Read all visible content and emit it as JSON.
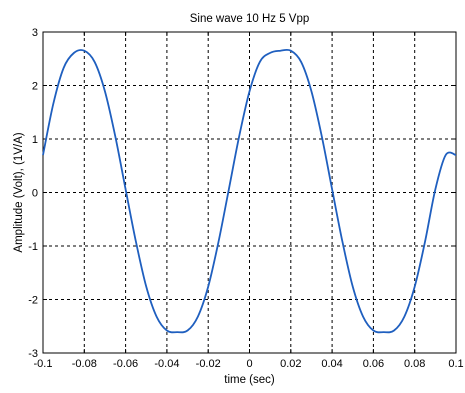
{
  "chart_data": {
    "type": "line",
    "title": "Sine wave 10 Hz 5 Vpp",
    "xlabel": "time (sec)",
    "ylabel": "Amplitude (Volt), (1V/A)",
    "xlim": [
      -0.1,
      0.1
    ],
    "ylim": [
      -3,
      3
    ],
    "grid": true,
    "xticks": [
      "-0.1",
      "-0.08",
      "-0.06",
      "-0.04",
      "-0.02",
      "0",
      "0.02",
      "0.04",
      "0.06",
      "0.08",
      "0.1"
    ],
    "yticks": [
      "-3",
      "-2",
      "-1",
      "0",
      "1",
      "2",
      "3"
    ],
    "series": [
      {
        "color": "#1f5fbf",
        "x": [
          -0.1,
          -0.095,
          -0.09,
          -0.085,
          -0.08,
          -0.075,
          -0.07,
          -0.065,
          -0.06,
          -0.055,
          -0.05,
          -0.045,
          -0.04,
          -0.035,
          -0.03,
          -0.025,
          -0.02,
          -0.015,
          -0.01,
          -0.005,
          0,
          0.005,
          0.01,
          0.015,
          0.02,
          0.025,
          0.03,
          0.035,
          0.04,
          0.045,
          0.05,
          0.055,
          0.06,
          0.065,
          0.07,
          0.075,
          0.08,
          0.085,
          0.09,
          0.095,
          0.1
        ],
        "y": [
          0.7,
          1.66,
          2.33,
          2.61,
          2.65,
          2.44,
          1.89,
          1.05,
          0.06,
          -0.92,
          -1.76,
          -2.32,
          -2.58,
          -2.61,
          -2.58,
          -2.32,
          -1.76,
          -0.92,
          0.06,
          1.05,
          1.89,
          2.44,
          2.61,
          2.65,
          2.65,
          2.44,
          1.89,
          1.05,
          0.06,
          -0.92,
          -1.76,
          -2.32,
          -2.58,
          -2.61,
          -2.58,
          -2.32,
          -1.76,
          -0.92,
          0.06,
          0.7,
          0.7
        ]
      }
    ]
  }
}
